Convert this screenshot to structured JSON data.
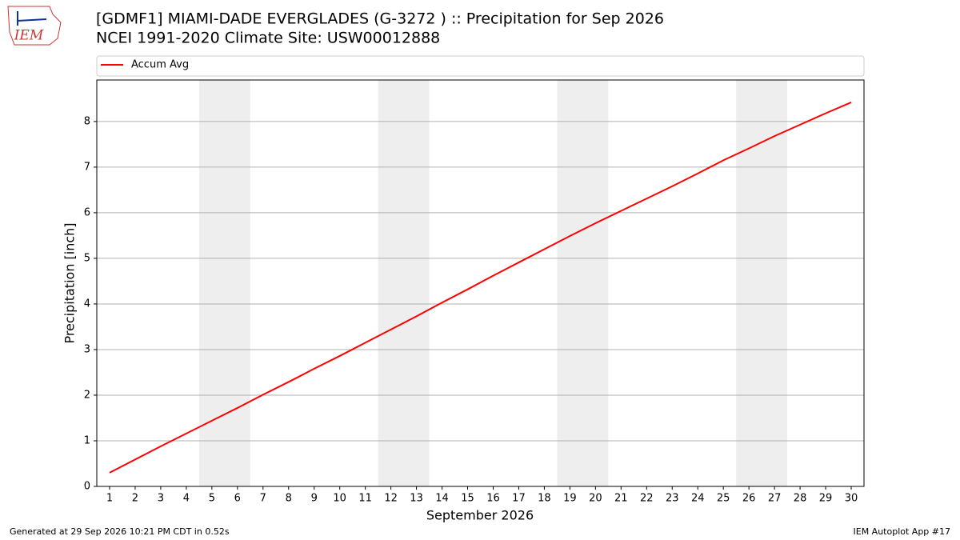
{
  "header": {
    "logo": "IEM"
  },
  "chart_data": {
    "type": "line",
    "title": "[GDMF1] MIAMI-DADE EVERGLADES (G-3272 ) :: Precipitation for Sep 2026",
    "subtitle": "NCEI 1991-2020 Climate Site: USW00012888",
    "x_label": "September 2026",
    "y_label": "Precipitation [inch]",
    "x": [
      1,
      2,
      3,
      4,
      5,
      6,
      7,
      8,
      9,
      10,
      11,
      12,
      13,
      14,
      15,
      16,
      17,
      18,
      19,
      20,
      21,
      22,
      23,
      24,
      25,
      26,
      27,
      28,
      29,
      30
    ],
    "series": [
      {
        "name": "Accum Avg",
        "color": "#ff0000",
        "values": [
          0.3,
          0.59,
          0.88,
          1.16,
          1.44,
          1.72,
          2.01,
          2.29,
          2.58,
          2.86,
          3.15,
          3.44,
          3.73,
          4.03,
          4.32,
          4.62,
          4.91,
          5.2,
          5.49,
          5.77,
          6.04,
          6.31,
          6.58,
          6.86,
          7.15,
          7.41,
          7.68,
          7.93,
          8.18,
          8.42
        ]
      }
    ],
    "shaded_ranges": [
      [
        4.5,
        6.5
      ],
      [
        11.5,
        13.5
      ],
      [
        18.5,
        20.5
      ],
      [
        25.5,
        27.5
      ]
    ],
    "shade_color": "#eeeeee",
    "xlim": [
      0.5,
      30.5
    ],
    "ylim": [
      0,
      8.91
    ],
    "xticks": [
      1,
      2,
      3,
      4,
      5,
      6,
      7,
      8,
      9,
      10,
      11,
      12,
      13,
      14,
      15,
      16,
      17,
      18,
      19,
      20,
      21,
      22,
      23,
      24,
      25,
      26,
      27,
      28,
      29,
      30
    ],
    "yticks": [
      0,
      1,
      2,
      3,
      4,
      5,
      6,
      7,
      8
    ],
    "grid": "y",
    "legend": "top"
  },
  "footer": {
    "left": "Generated at 29 Sep 2026 10:21 PM CDT in 0.52s",
    "right": "IEM Autoplot App #17"
  }
}
